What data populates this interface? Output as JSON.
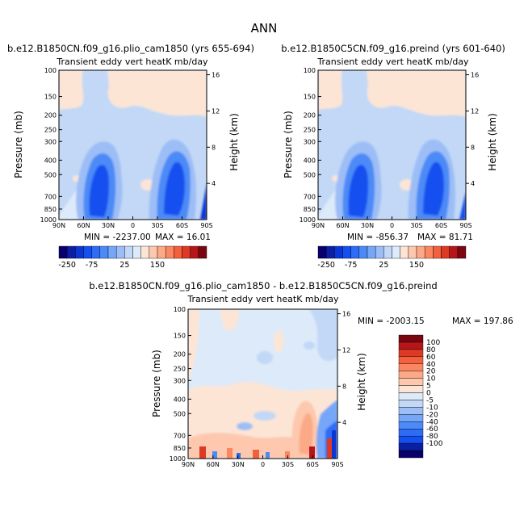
{
  "figure_title": "ANN",
  "palette_abs": [
    "#08006b",
    "#0b1fa5",
    "#0c36d3",
    "#1450ef",
    "#2e6cf6",
    "#4c8af7",
    "#76a6f7",
    "#9dbdf6",
    "#c2d8f6",
    "#ddeaf9",
    "#fde5d6",
    "#fdc8ad",
    "#fca987",
    "#fb8762",
    "#f2603d",
    "#dc3a24",
    "#b6161a",
    "#7a0610"
  ],
  "palette_diff": [
    "#7a0610",
    "#b6161a",
    "#dc3a24",
    "#f2603d",
    "#fb8762",
    "#fca987",
    "#fdc8ad",
    "#fde5d6",
    "#ddeaf9",
    "#c2d8f6",
    "#9dbdf6",
    "#76a6f7",
    "#4c8af7",
    "#2e6cf6",
    "#1450ef",
    "#0b1fa5",
    "#08006b"
  ],
  "axis_ticks": {
    "x_labels": [
      "90N",
      "60N",
      "30N",
      "0",
      "30S",
      "60S",
      "90S"
    ],
    "pressure_labels": [
      "100",
      "150",
      "200",
      "250",
      "300",
      "400",
      "500",
      "700",
      "850",
      "1000"
    ],
    "height_labels": [
      "16",
      "12",
      "8",
      "4"
    ]
  },
  "chart_data": [
    {
      "type": "contour",
      "title": "b.e12.B1850CN.f09_g16.plio_cam1850 (yrs 655-694)",
      "subtitle": "Transient eddy vert heatK mb/day",
      "xlabel": "",
      "ylabel": "Pressure (mb)",
      "ylabel_right": "Height (km)",
      "x_range": [
        "90N",
        "90S"
      ],
      "y_range_mb": [
        1000,
        100
      ],
      "y_scale": "log",
      "height_range_km": [
        0,
        16
      ],
      "min_label": "MIN = -2237.00",
      "max_label": "MAX = 16.01",
      "min": -2237.0,
      "max": 16.01
    },
    {
      "type": "contour",
      "title": "b.e12.B1850C5CN.f09_g16.preind (yrs 601-640)",
      "subtitle": "Transient eddy vert heatK mb/day",
      "xlabel": "",
      "ylabel": "Pressure (mb)",
      "ylabel_right": "Height (km)",
      "x_range": [
        "90N",
        "90S"
      ],
      "y_range_mb": [
        1000,
        100
      ],
      "y_scale": "log",
      "height_range_km": [
        0,
        16
      ],
      "min_label": "MIN = -856.37",
      "max_label": "MAX = 81.71",
      "min": -856.37,
      "max": 81.71
    },
    {
      "type": "contour",
      "title": "b.e12.B1850CN.f09_g16.plio_cam1850 - b.e12.B1850C5CN.f09_g16.preind",
      "subtitle": "Transient eddy vert heatK mb/day",
      "xlabel": "",
      "ylabel": "Pressure (mb)",
      "ylabel_right": "Height (km)",
      "x_range": [
        "90N",
        "90S"
      ],
      "y_range_mb": [
        1000,
        100
      ],
      "y_scale": "log",
      "height_range_km": [
        0,
        16
      ],
      "min_label": "MIN = -2003.15",
      "max_label": "MAX = 197.86",
      "min": -2003.15,
      "max": 197.86
    }
  ],
  "colorbar_abs": {
    "orientation": "horizontal",
    "labels": [
      "-250",
      "-75",
      "25",
      "150"
    ]
  },
  "colorbar_diff": {
    "orientation": "vertical",
    "labels": [
      "100",
      "80",
      "60",
      "40",
      "20",
      "10",
      "5",
      "0",
      "-5",
      "-10",
      "-20",
      "-40",
      "-60",
      "-80",
      "-100"
    ]
  }
}
